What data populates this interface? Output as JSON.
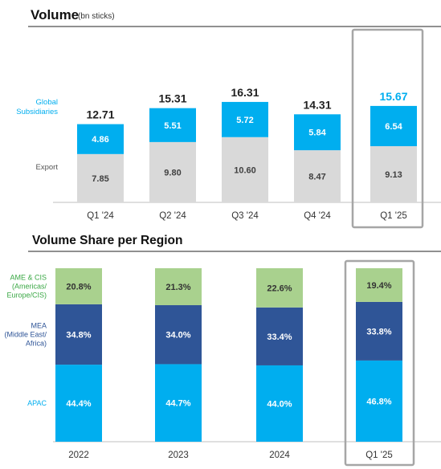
{
  "chart_data": [
    {
      "type": "bar",
      "stacked": true,
      "title": "Volume",
      "subtitle": "(bn sticks)",
      "categories": [
        "Q1 '24",
        "Q2 '24",
        "Q3 '24",
        "Q4 '24",
        "Q1 '25"
      ],
      "series": [
        {
          "name": "Export",
          "values": [
            7.85,
            9.8,
            10.6,
            8.47,
            9.13
          ],
          "color": "#d9d9d9",
          "label_color": "#404040"
        },
        {
          "name": "Global Subsidiaries",
          "values": [
            4.86,
            5.51,
            5.72,
            5.84,
            6.54
          ],
          "color": "#00aeef",
          "label_color": "#ffffff"
        }
      ],
      "totals": [
        12.71,
        15.31,
        16.31,
        14.31,
        15.67
      ],
      "total_colors": [
        "#222222",
        "#222222",
        "#222222",
        "#222222",
        "#00aeef"
      ],
      "series_label_color": "#00aeef",
      "export_label_color": "#555555",
      "highlight_category": "Q1 '25",
      "ylim": [
        0,
        18
      ]
    },
    {
      "type": "bar",
      "stacked": true,
      "percent": true,
      "title": "Volume Share per Region",
      "categories": [
        "2022",
        "2023",
        "2024",
        "Q1 '25"
      ],
      "series": [
        {
          "name": "APAC",
          "values": [
            44.4,
            44.7,
            44.0,
            46.8
          ],
          "labels": [
            "44.4%",
            "44.7%",
            "44.0%",
            "46.8%"
          ],
          "color": "#00aeef",
          "label_color": "#ffffff",
          "name_color": "#00aeef",
          "name_lines": [
            "APAC"
          ]
        },
        {
          "name": "MEA (Middle East/ Africa)",
          "values": [
            34.8,
            34.0,
            33.4,
            33.8
          ],
          "labels": [
            "34.8%",
            "34.0%",
            "33.4%",
            "33.8%"
          ],
          "color": "#2f5597",
          "label_color": "#ffffff",
          "name_color": "#2f5597",
          "name_lines": [
            "MEA",
            "(Middle East/",
            "Africa)"
          ]
        },
        {
          "name": "AME & CIS (Americas/ Europe/CIS)",
          "values": [
            20.8,
            21.3,
            22.6,
            19.4
          ],
          "labels": [
            "20.8%",
            "21.3%",
            "22.6%",
            "19.4%"
          ],
          "color": "#a9d18e",
          "label_color": "#333333",
          "name_color": "#3aa845",
          "name_lines": [
            "AME & CIS",
            "(Americas/",
            "Europe/CIS)"
          ]
        }
      ],
      "highlight_category": "Q1 '25",
      "ylim": [
        0,
        100
      ]
    }
  ]
}
